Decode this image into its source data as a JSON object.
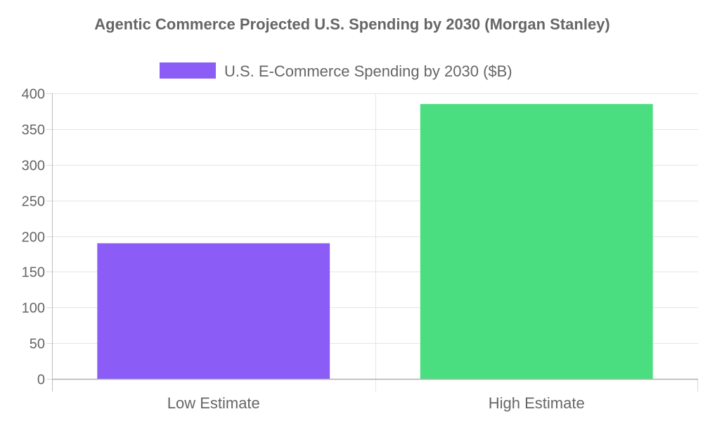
{
  "title": "Agentic Commerce Projected U.S. Spending by 2030 (Morgan Stanley)",
  "chart_data": {
    "type": "bar",
    "title": "Agentic Commerce Projected U.S. Spending by 2030 (Morgan Stanley)",
    "categories": [
      "Low Estimate",
      "High Estimate"
    ],
    "series": [
      {
        "name": "U.S. E-Commerce Spending by 2030 ($B)",
        "values": [
          190,
          385
        ],
        "colors": [
          "#8b5cf6",
          "#4ade80"
        ]
      }
    ],
    "xlabel": "",
    "ylabel": "",
    "ylim": [
      0,
      400
    ],
    "yticks": [
      0,
      50,
      100,
      150,
      200,
      250,
      300,
      350,
      400
    ],
    "grid": true,
    "legend_position": "top",
    "legend_color": "#8b5cf6"
  }
}
